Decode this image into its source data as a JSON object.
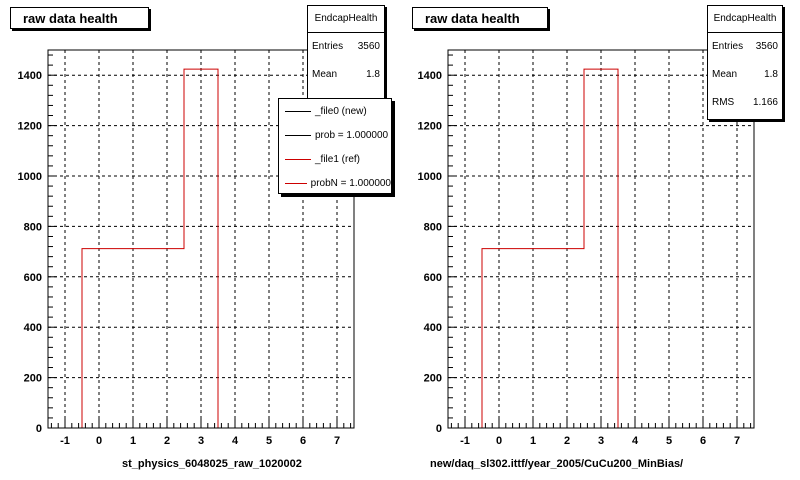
{
  "chart_data": [
    {
      "type": "histogram",
      "title": "raw data health",
      "xlabel": "st_physics_6048025_raw_1020002",
      "ylabel": "",
      "xlim": [
        -1.5,
        7.5
      ],
      "ylim": [
        0,
        1500
      ],
      "x_ticks": [
        -1,
        0,
        1,
        2,
        3,
        4,
        5,
        6,
        7
      ],
      "y_ticks": [
        0,
        200,
        400,
        600,
        800,
        1000,
        1200,
        1400
      ],
      "grid": true,
      "series": [
        {
          "color": "#cc0000",
          "bins": [
            [
              -0.5,
              2.5,
              712
            ],
            [
              2.5,
              3.5,
              1424
            ]
          ]
        }
      ],
      "stats": {
        "name": "EndcapHealth",
        "rows": [
          [
            "Entries",
            "3560"
          ],
          [
            "Mean",
            "1.8"
          ]
        ]
      },
      "legend": [
        {
          "label": "_file0 (new)",
          "color": "#000000"
        },
        {
          "label": "prob = 1.000000",
          "color": "#000000"
        },
        {
          "label": "_file1 (ref)",
          "color": "#cc0000"
        },
        {
          "label": "probN = 1.000000",
          "color": "#cc0000"
        }
      ]
    },
    {
      "type": "histogram",
      "title": "raw data health",
      "xlabel": "new/daq_sl302.ittf/year_2005/CuCu200_MinBias/",
      "ylabel": "",
      "xlim": [
        -1.5,
        7.5
      ],
      "ylim": [
        0,
        1500
      ],
      "x_ticks": [
        -1,
        0,
        1,
        2,
        3,
        4,
        5,
        6,
        7
      ],
      "y_ticks": [
        0,
        200,
        400,
        600,
        800,
        1000,
        1200,
        1400
      ],
      "grid": true,
      "series": [
        {
          "color": "#cc0000",
          "bins": [
            [
              -0.5,
              2.5,
              712
            ],
            [
              2.5,
              3.5,
              1424
            ]
          ]
        }
      ],
      "stats": {
        "name": "EndcapHealth",
        "rows": [
          [
            "Entries",
            "3560"
          ],
          [
            "Mean",
            "1.8"
          ],
          [
            "RMS",
            "1.166"
          ]
        ]
      }
    }
  ]
}
